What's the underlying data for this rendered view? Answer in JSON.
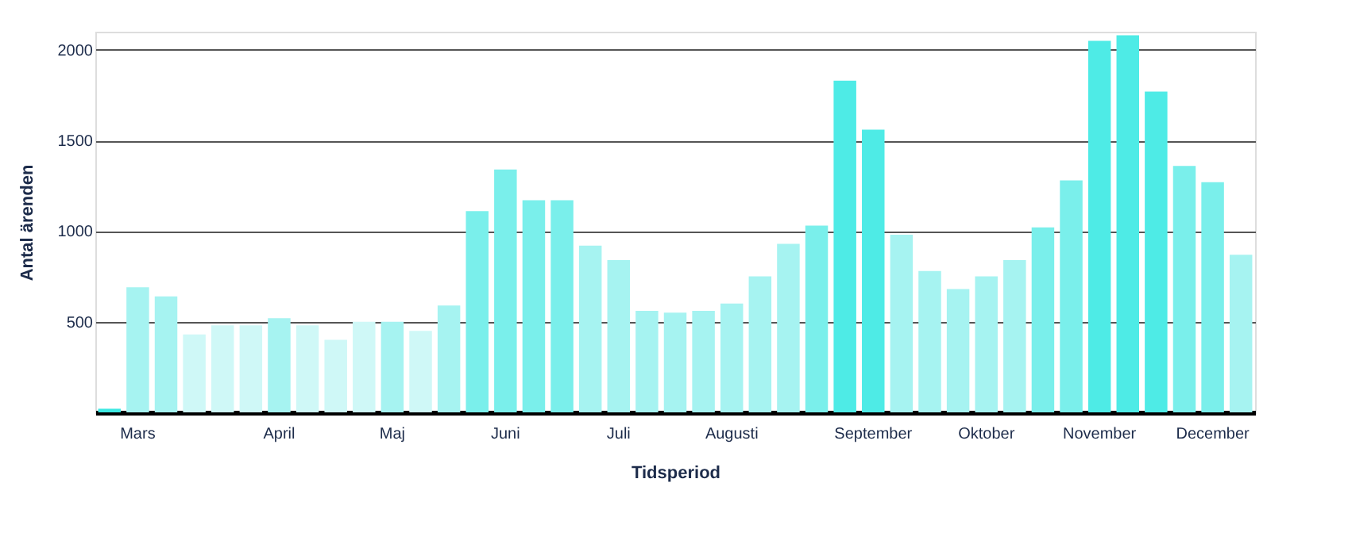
{
  "chart_data": {
    "type": "bar",
    "xlabel": "Tidsperiod",
    "ylabel": "Antal ärenden",
    "categories": [
      null,
      "Mars",
      null,
      null,
      null,
      null,
      "April",
      null,
      null,
      null,
      "Maj",
      null,
      null,
      null,
      "Juni",
      null,
      null,
      null,
      "Juli",
      null,
      null,
      null,
      "Augusti",
      null,
      null,
      null,
      null,
      "September",
      null,
      null,
      null,
      "Oktober",
      null,
      null,
      null,
      "November",
      null,
      null,
      null,
      "December",
      null
    ],
    "values": [
      20,
      690,
      640,
      430,
      480,
      480,
      520,
      480,
      400,
      500,
      500,
      450,
      590,
      1110,
      1340,
      1170,
      1170,
      920,
      840,
      560,
      550,
      560,
      600,
      750,
      930,
      1030,
      1830,
      1560,
      980,
      780,
      680,
      750,
      840,
      1020,
      1280,
      2050,
      2080,
      1770,
      1360,
      1270,
      870
    ],
    "colors": [
      "#3ee8e2",
      "#a6f3f1",
      "#a6f3f1",
      "#cff8f7",
      "#cff8f7",
      "#cff8f7",
      "#a6f3f1",
      "#cff8f7",
      "#cff8f7",
      "#cff8f7",
      "#a6f3f1",
      "#cff8f7",
      "#a6f3f1",
      "#7aefeb",
      "#7aefeb",
      "#7aefeb",
      "#7aefeb",
      "#a6f3f1",
      "#a6f3f1",
      "#a6f3f1",
      "#a6f3f1",
      "#a6f3f1",
      "#a6f3f1",
      "#a6f3f1",
      "#a6f3f1",
      "#7aefeb",
      "#4eebe6",
      "#4eebe6",
      "#a6f3f1",
      "#a6f3f1",
      "#a6f3f1",
      "#a6f3f1",
      "#a6f3f1",
      "#7aefeb",
      "#7aefeb",
      "#4eebe6",
      "#4eebe6",
      "#4eebe6",
      "#7aefeb",
      "#7aefeb",
      "#a6f3f1"
    ],
    "ylim": [
      0,
      2100
    ],
    "yticks": [
      500,
      1000,
      1500,
      2000
    ],
    "grid": "y"
  }
}
